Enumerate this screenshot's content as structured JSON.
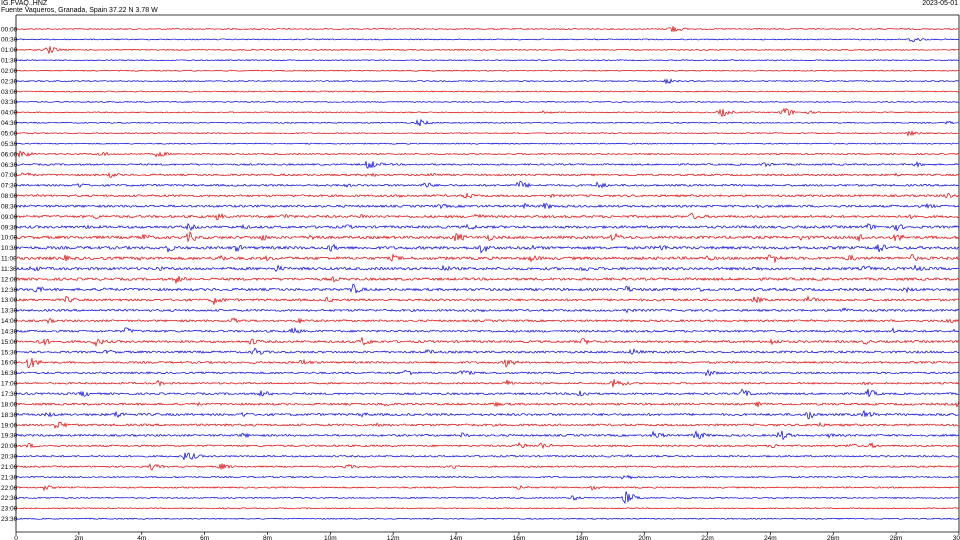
{
  "header": {
    "station": "IG.FVAQ..HNZ",
    "location": "Fuente Vaqueros, Granada, Spain  37.22 N 3.78 W",
    "date": "2023-05-01"
  },
  "colors": {
    "odd_trace": "#e00000",
    "even_trace": "#0000dd",
    "frame": "#000000"
  },
  "chart_data": {
    "type": "line",
    "title": "",
    "xlabel": "",
    "ylabel": "",
    "x_unit": "minutes",
    "xlim": [
      0,
      30
    ],
    "x_ticks": [
      "0",
      "2m",
      "4m",
      "6m",
      "8m",
      "10m",
      "12m",
      "14m",
      "16m",
      "18m",
      "20m",
      "22m",
      "24m",
      "26m",
      "28m",
      "30"
    ],
    "rows": [
      "00:00",
      "00:30",
      "01:00",
      "01:30",
      "02:00",
      "02:30",
      "03:00",
      "03:30",
      "04:00",
      "04:30",
      "05:00",
      "05:30",
      "06:00",
      "06:30",
      "07:00",
      "07:30",
      "08:00",
      "08:30",
      "09:00",
      "09:30",
      "10:00",
      "10:30",
      "11:00",
      "11:30",
      "12:00",
      "12:30",
      "13:00",
      "13:30",
      "14:00",
      "14:30",
      "15:00",
      "15:30",
      "16:00",
      "16:30",
      "17:00",
      "17:30",
      "18:00",
      "18:30",
      "19:00",
      "19:30",
      "20:00",
      "20:30",
      "21:00",
      "21:30",
      "22:00",
      "22:30",
      "23:00",
      "23:30"
    ],
    "series": [
      {
        "color": "red",
        "rows": "00:00,01:00,02:00,...,23:00"
      },
      {
        "color": "blue",
        "rows": "00:30,01:30,02:30,...,23:30"
      }
    ],
    "noise_level": [
      0.8,
      0.8,
      0.8,
      0.8,
      0.8,
      0.8,
      0.8,
      0.8,
      0.8,
      0.8,
      0.8,
      0.8,
      1.0,
      1.2,
      1.3,
      1.4,
      1.5,
      1.6,
      1.7,
      1.8,
      1.9,
      2.0,
      2.0,
      1.9,
      1.8,
      1.8,
      1.6,
      1.5,
      1.4,
      1.5,
      1.6,
      1.5,
      1.4,
      1.3,
      1.2,
      1.4,
      1.5,
      1.6,
      1.5,
      1.4,
      1.3,
      1.2,
      1.1,
      1.0,
      1.0,
      0.9,
      0.8,
      0.8
    ],
    "events": [
      [
        [
          20.8,
          5
        ]
      ],
      [
        [
          28.5,
          4
        ]
      ],
      [
        [
          1.0,
          5
        ]
      ],
      [],
      [],
      [
        [
          20.7,
          3
        ]
      ],
      [],
      [],
      [
        [
          16.8,
          2
        ],
        [
          22.4,
          5
        ],
        [
          24.4,
          6
        ],
        [
          25.2,
          2
        ]
      ],
      [
        [
          12.8,
          4
        ],
        [
          29.6,
          2
        ]
      ],
      [
        [
          28.4,
          3
        ]
      ],
      [],
      [
        [
          0.1,
          5
        ],
        [
          2.7,
          3
        ],
        [
          4.5,
          4
        ]
      ],
      [
        [
          11.2,
          6
        ],
        [
          23.8,
          3
        ],
        [
          28.6,
          3
        ]
      ],
      [
        [
          0.2,
          4
        ],
        [
          3.0,
          3
        ],
        [
          11.2,
          3
        ],
        [
          13.2,
          3
        ],
        [
          28.0,
          2
        ]
      ],
      [
        [
          2.0,
          3
        ],
        [
          10.5,
          2
        ],
        [
          13.0,
          4
        ],
        [
          16.0,
          5
        ],
        [
          18.5,
          4
        ]
      ],
      [
        [
          12.2,
          3
        ],
        [
          14.3,
          4
        ],
        [
          17.0,
          2
        ],
        [
          29.6,
          4
        ]
      ],
      [
        [
          13.5,
          3
        ],
        [
          16.2,
          3
        ],
        [
          16.8,
          4
        ],
        [
          23.5,
          3
        ],
        [
          29.0,
          3
        ]
      ],
      [
        [
          2.5,
          3
        ],
        [
          6.4,
          4
        ],
        [
          8.5,
          4
        ],
        [
          11.0,
          3
        ],
        [
          14.6,
          4
        ],
        [
          21.5,
          4
        ],
        [
          28.5,
          3
        ]
      ],
      [
        [
          2.3,
          3
        ],
        [
          5.5,
          4
        ],
        [
          7.2,
          3
        ],
        [
          10.5,
          3
        ],
        [
          14.4,
          4
        ],
        [
          27.1,
          4
        ],
        [
          28.0,
          4
        ]
      ],
      [
        [
          4.0,
          5
        ],
        [
          5.5,
          6
        ],
        [
          7.8,
          4
        ],
        [
          9.4,
          5
        ],
        [
          14.0,
          6
        ],
        [
          15.0,
          4
        ],
        [
          19.0,
          5
        ],
        [
          25.0,
          4
        ],
        [
          26.8,
          5
        ],
        [
          28.0,
          5
        ]
      ],
      [
        [
          4.8,
          5
        ],
        [
          7.0,
          4
        ],
        [
          10.0,
          5
        ],
        [
          14.8,
          6
        ],
        [
          16.3,
          4
        ],
        [
          20.5,
          4
        ],
        [
          27.4,
          6
        ]
      ],
      [
        [
          1.5,
          4
        ],
        [
          4.0,
          3
        ],
        [
          6.5,
          4
        ],
        [
          8.0,
          3
        ],
        [
          12.0,
          4
        ],
        [
          16.4,
          4
        ],
        [
          22.0,
          3
        ],
        [
          24.0,
          7
        ],
        [
          26.5,
          4
        ],
        [
          28.5,
          4
        ]
      ],
      [
        [
          0.5,
          4
        ],
        [
          4.5,
          3
        ],
        [
          8.3,
          4
        ],
        [
          13.6,
          4
        ],
        [
          18.0,
          4
        ],
        [
          23.5,
          3
        ],
        [
          27.0,
          4
        ],
        [
          28.6,
          4
        ]
      ],
      [
        [
          5.1,
          5
        ],
        [
          10.1,
          3
        ]
      ],
      [
        [
          0.6,
          4
        ],
        [
          2.8,
          3
        ],
        [
          10.7,
          6
        ],
        [
          19.4,
          4
        ],
        [
          21.6,
          4
        ],
        [
          28.3,
          3
        ]
      ],
      [
        [
          1.6,
          4
        ],
        [
          6.3,
          5
        ],
        [
          9.9,
          3
        ],
        [
          23.5,
          4
        ],
        [
          25.2,
          4
        ]
      ],
      [
        [
          14.8,
          3
        ],
        [
          19.4,
          3
        ],
        [
          26.3,
          3
        ]
      ],
      [
        [
          1.0,
          3
        ],
        [
          6.9,
          4
        ],
        [
          9.0,
          3
        ],
        [
          29.6,
          4
        ]
      ],
      [
        [
          3.5,
          4
        ],
        [
          8.8,
          4
        ],
        [
          27.9,
          3
        ],
        [
          29.8,
          2
        ]
      ],
      [
        [
          0.8,
          5
        ],
        [
          2.5,
          5
        ],
        [
          7.5,
          4
        ],
        [
          11.0,
          5
        ],
        [
          18.0,
          4
        ],
        [
          24.0,
          4
        ],
        [
          27.0,
          3
        ]
      ],
      [
        [
          2.9,
          3
        ],
        [
          7.6,
          5
        ],
        [
          13.1,
          3
        ],
        [
          19.6,
          4
        ]
      ],
      [
        [
          0.4,
          7
        ],
        [
          9.1,
          4
        ],
        [
          15.6,
          5
        ]
      ],
      [
        [
          12.4,
          4
        ],
        [
          14.2,
          4
        ],
        [
          22.0,
          4
        ]
      ],
      [
        [
          4.5,
          3
        ],
        [
          15.6,
          4
        ],
        [
          19.0,
          6
        ],
        [
          27.0,
          3
        ]
      ],
      [
        [
          2.1,
          4
        ],
        [
          7.8,
          4
        ],
        [
          17.9,
          5
        ],
        [
          23.1,
          5
        ],
        [
          27.1,
          5
        ]
      ],
      [
        [
          5.8,
          2
        ],
        [
          11.7,
          3
        ],
        [
          15.2,
          3
        ],
        [
          23.6,
          3
        ],
        [
          30.0,
          6
        ]
      ],
      [
        [
          1.0,
          3
        ],
        [
          3.2,
          4
        ],
        [
          7.2,
          3
        ],
        [
          11.0,
          3
        ],
        [
          25.2,
          5
        ],
        [
          27.0,
          5
        ],
        [
          29.4,
          3
        ]
      ],
      [
        [
          1.3,
          5
        ],
        [
          6.6,
          3
        ],
        [
          11.5,
          3
        ],
        [
          25.5,
          3
        ]
      ],
      [
        [
          7.2,
          3
        ],
        [
          14.2,
          3
        ],
        [
          20.3,
          5
        ],
        [
          21.6,
          6
        ],
        [
          24.3,
          6
        ],
        [
          25.9,
          3
        ]
      ],
      [
        [
          0.4,
          3
        ],
        [
          16.0,
          4
        ],
        [
          16.7,
          4
        ],
        [
          24.0,
          3
        ],
        [
          26.5,
          3
        ],
        [
          27.2,
          3
        ]
      ],
      [
        [
          5.4,
          6
        ],
        [
          19.5,
          2
        ]
      ],
      [
        [
          4.3,
          4
        ],
        [
          6.5,
          4
        ],
        [
          10.5,
          3
        ],
        [
          13.9,
          3
        ]
      ],
      [
        [
          19.3,
          4
        ]
      ],
      [
        [
          0.9,
          3
        ],
        [
          16.0,
          3
        ],
        [
          18.3,
          3
        ]
      ],
      [
        [
          17.7,
          3
        ],
        [
          19.4,
          7
        ]
      ],
      [],
      []
    ]
  }
}
